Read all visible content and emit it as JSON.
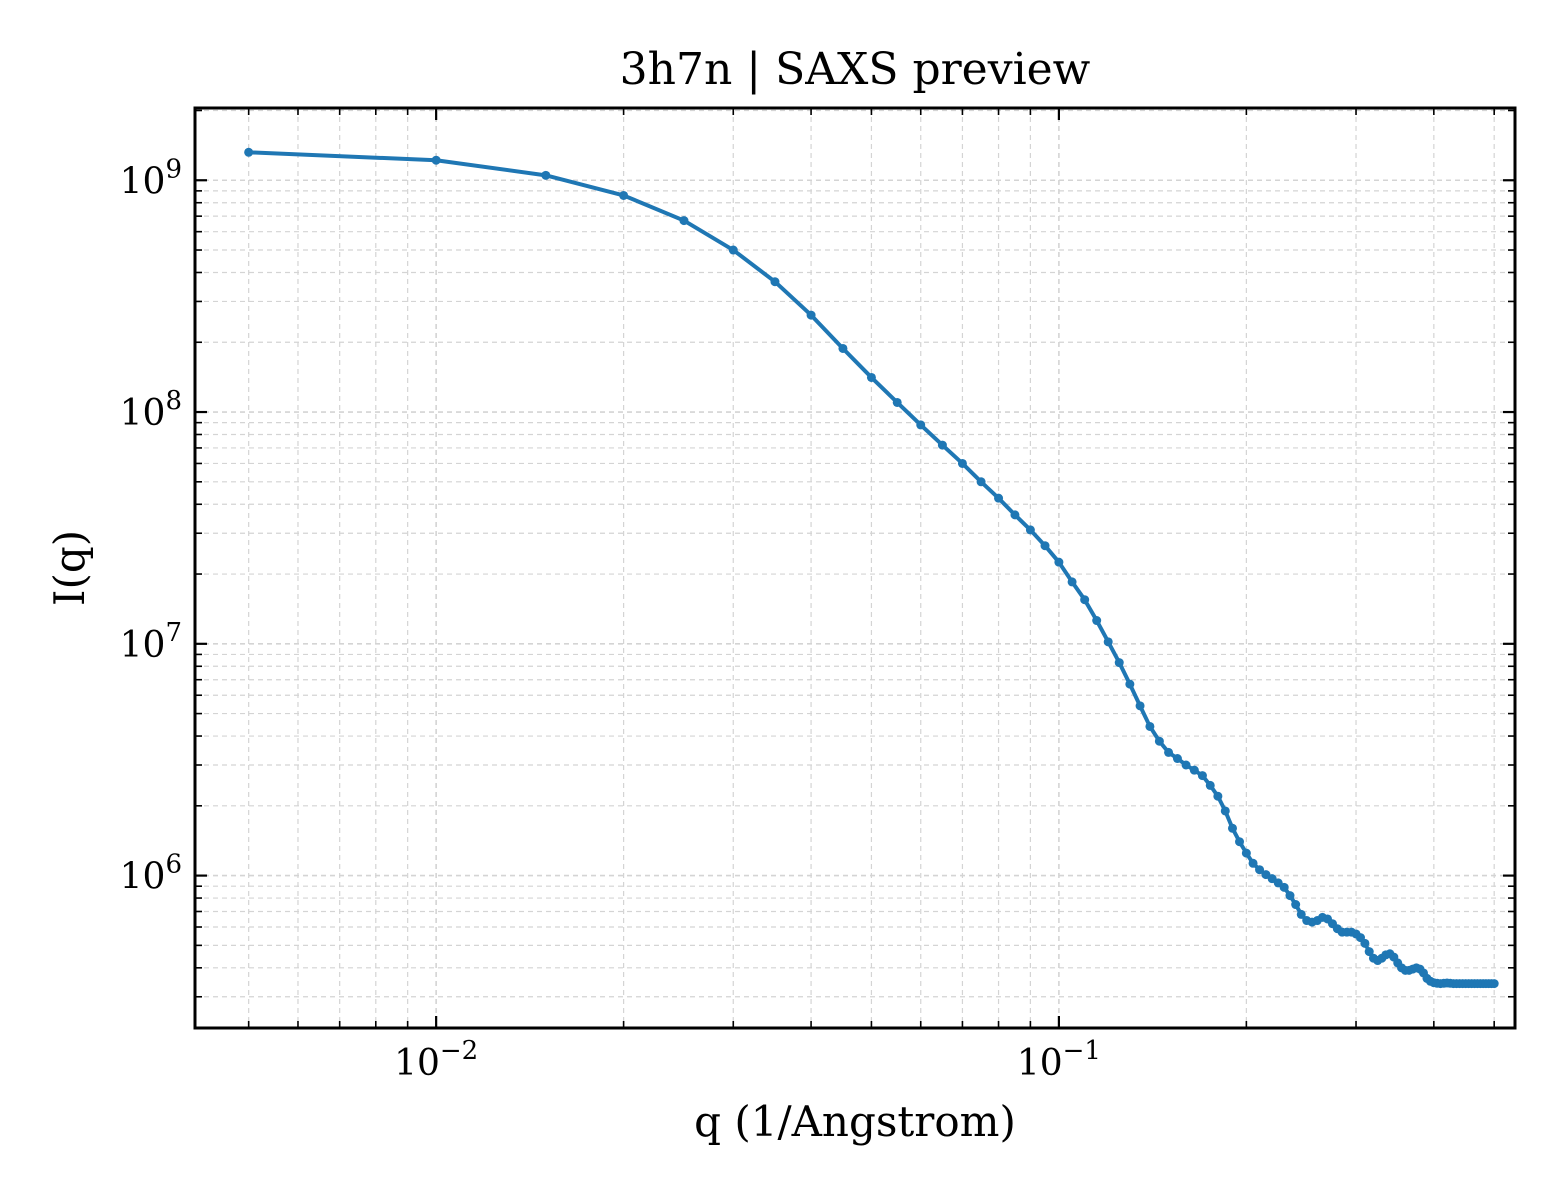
{
  "chart_data": {
    "type": "line",
    "title": "3h7n | SAXS preview",
    "xlabel": "q (1/Angstrom)",
    "ylabel": "I(q)",
    "xscale": "log",
    "yscale": "log",
    "xlim": [
      0.0041,
      0.54
    ],
    "ylim": [
      220000,
      2050000000
    ],
    "grid": true,
    "legend": "none",
    "x_ticks": [
      {
        "value": 0.01,
        "base": "10",
        "exp": "−2"
      },
      {
        "value": 0.1,
        "base": "10",
        "exp": "−1"
      }
    ],
    "y_ticks": [
      {
        "value": 1000000,
        "base": "10",
        "exp": "6"
      },
      {
        "value": 10000000,
        "base": "10",
        "exp": "7"
      },
      {
        "value": 100000000,
        "base": "10",
        "exp": "8"
      },
      {
        "value": 1000000000,
        "base": "10",
        "exp": "9"
      }
    ],
    "series": [
      {
        "color": "#1f77b4",
        "x": [
          0.005,
          0.01,
          0.015,
          0.02,
          0.025,
          0.03,
          0.035,
          0.04,
          0.045,
          0.05,
          0.055,
          0.06,
          0.065,
          0.07,
          0.075,
          0.08,
          0.085,
          0.09,
          0.095,
          0.1,
          0.105,
          0.11,
          0.115,
          0.12,
          0.125,
          0.13,
          0.135,
          0.14,
          0.145,
          0.15,
          0.155,
          0.16,
          0.165,
          0.17,
          0.175,
          0.18,
          0.185,
          0.19,
          0.195,
          0.2,
          0.205,
          0.21,
          0.215,
          0.22,
          0.225,
          0.23,
          0.235,
          0.24,
          0.245,
          0.25,
          0.255,
          0.26,
          0.265,
          0.27,
          0.275,
          0.28,
          0.285,
          0.29,
          0.295,
          0.3,
          0.305,
          0.31,
          0.315,
          0.32,
          0.325,
          0.33,
          0.335,
          0.34,
          0.345,
          0.35,
          0.355,
          0.36,
          0.365,
          0.37,
          0.375,
          0.38,
          0.385,
          0.39,
          0.395,
          0.4,
          0.405,
          0.41,
          0.415,
          0.42,
          0.425,
          0.43,
          0.435,
          0.44,
          0.445,
          0.45,
          0.455,
          0.46,
          0.465,
          0.47,
          0.475,
          0.48,
          0.485,
          0.49,
          0.495,
          0.5
        ],
        "y": [
          1320000000,
          1220000000,
          1050000000,
          860000000,
          670000000,
          500000000,
          365000000,
          262000000,
          188000000,
          141000000,
          110000000,
          88000000,
          72000000,
          60000000,
          50000000,
          42500000,
          36000000,
          31000000,
          26500000,
          22500000,
          18500000,
          15500000,
          12600000,
          10200000,
          8300000,
          6700000,
          5400000,
          4400000,
          3800000,
          3400000,
          3200000,
          3000000,
          2850000,
          2700000,
          2450000,
          2200000,
          1900000,
          1600000,
          1400000,
          1250000,
          1130000,
          1060000,
          1010000,
          970000,
          930000,
          890000,
          820000,
          750000,
          680000,
          640000,
          630000,
          640000,
          660000,
          650000,
          620000,
          590000,
          570000,
          570000,
          570000,
          560000,
          540000,
          510000,
          470000,
          440000,
          430000,
          440000,
          455000,
          460000,
          445000,
          420000,
          400000,
          390000,
          390000,
          395000,
          400000,
          395000,
          380000,
          360000,
          350000,
          345000,
          343000,
          342000,
          343000,
          344000,
          343000,
          342000,
          342000,
          342000,
          342000,
          342000,
          342000,
          342000,
          342000,
          342000,
          342000,
          342000,
          342000,
          342000,
          342000,
          342000
        ]
      }
    ]
  }
}
